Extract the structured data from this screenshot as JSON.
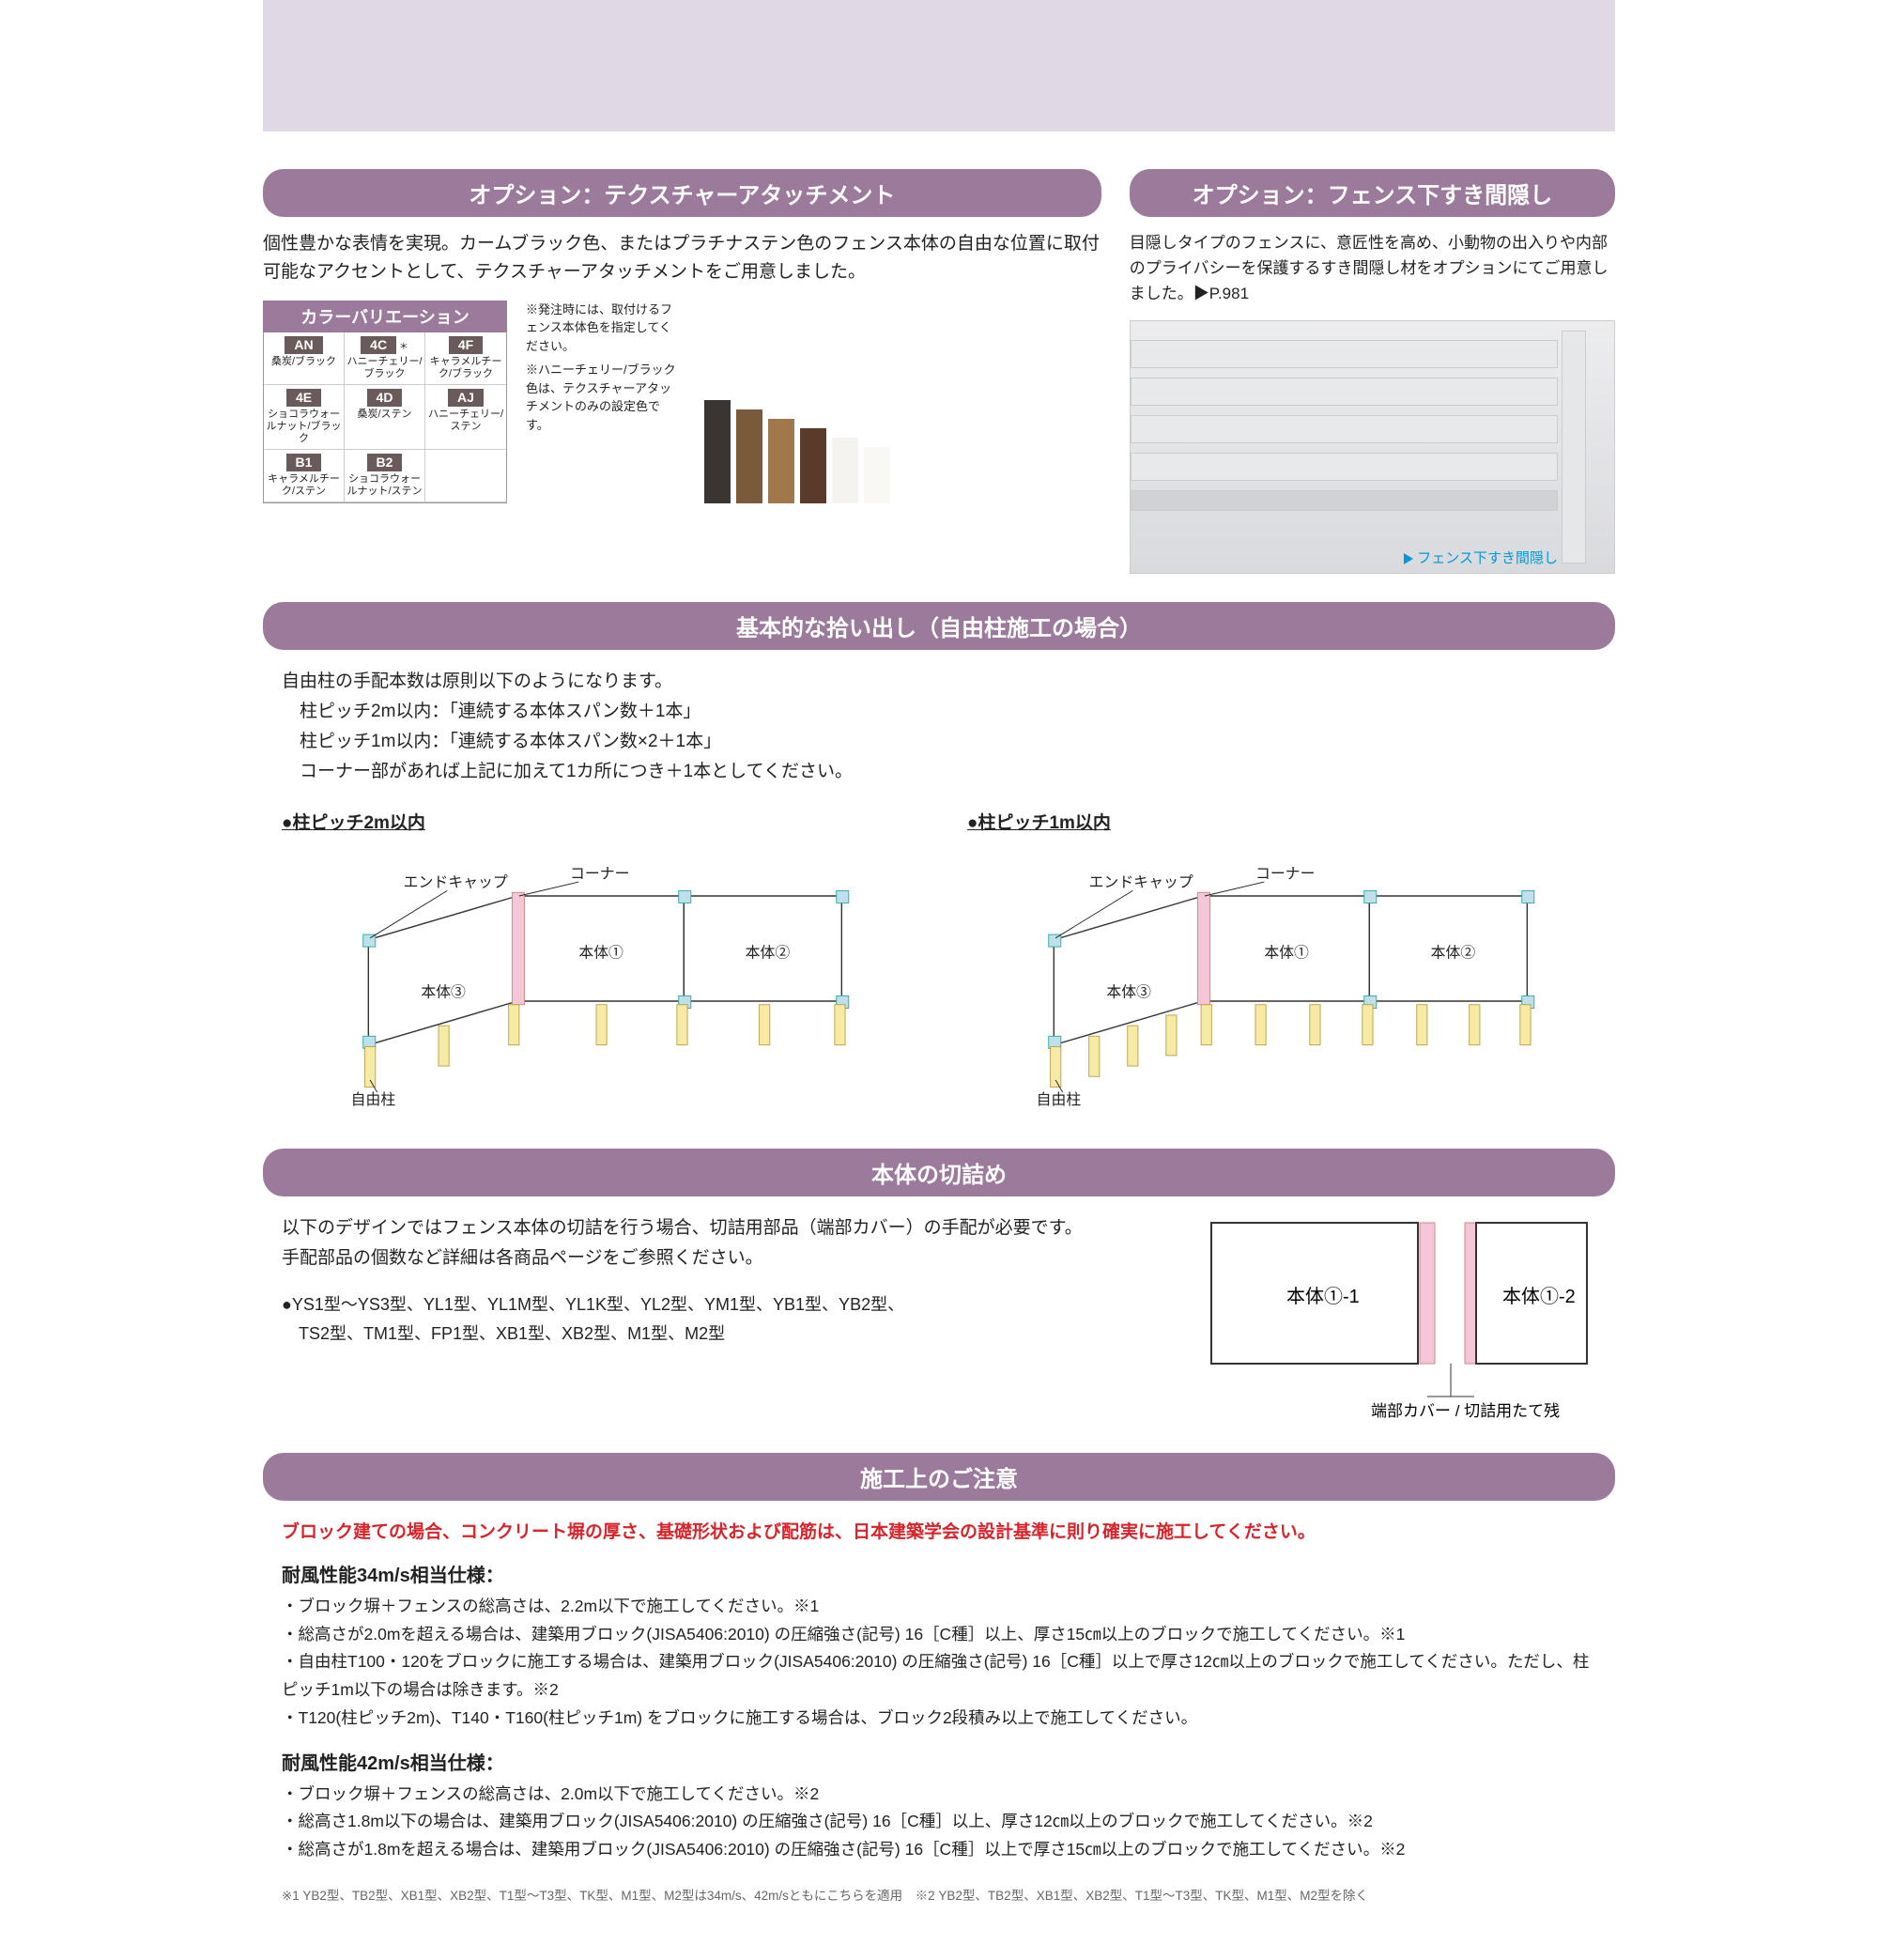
{
  "colors": {
    "purple": "#9b7a9b",
    "red": "#d8232a",
    "cyan": "#0099d8"
  },
  "option1": {
    "header": "オプション：テクスチャーアタッチメント",
    "lead": "個性豊かな表情を実現。カームブラック色、またはプラチナステン色のフェンス本体の自由な位置に取付可能なアクセントとして、テクスチャーアタッチメントをご用意しました。",
    "colorTitle": "カラーバリエーション",
    "swatches": [
      {
        "code": "AN",
        "label": "桑炭/ブラック"
      },
      {
        "code": "4C",
        "label": "ハニーチェリー/ブラック",
        "star": "＊"
      },
      {
        "code": "4F",
        "label": "キャラメルチーク/ブラック"
      },
      {
        "code": "4E",
        "label": "ショコラウォールナット/ブラック"
      },
      {
        "code": "4D",
        "label": "桑炭/ステン"
      },
      {
        "code": "AJ",
        "label": "ハニーチェリー/ステン"
      },
      {
        "code": "B1",
        "label": "キャラメルチーク/ステン"
      },
      {
        "code": "B2",
        "label": "ショコラウォールナット/ステン"
      }
    ],
    "note1": "※発注時には、取付けるフェンス本体色を指定してください。",
    "note2": "※ハニーチェリー/ブラック色は、テクスチャーアタッチメントのみの設定色です。"
  },
  "option2": {
    "header": "オプション：フェンス下すき間隠し",
    "lead": "目隠しタイプのフェンスに、意匠性を高め、小動物の出入りや内部のプライバシーを保護するすき間隠し材をオプションにてご用意しました。▶P.981",
    "arrowLabel": "フェンス下すき間隠し"
  },
  "basic": {
    "header": "基本的な拾い出し（自由柱施工の場合）",
    "intro": "自由柱の手配本数は原則以下のようになります。",
    "line1": "　柱ピッチ2m以内：「連続する本体スパン数＋1本」",
    "line2": "　柱ピッチ1m以内：「連続する本体スパン数×2＋1本」",
    "line3": "　コーナー部があれば上記に加えて1カ所につき＋1本としてください。",
    "diag1": {
      "title": "●柱ピッチ2m以内"
    },
    "diag2": {
      "title": "●柱ピッチ1m以内"
    },
    "labels": {
      "endcap": "エンドキャップ",
      "corner": "コーナー",
      "body1": "本体①",
      "body2": "本体②",
      "body3": "本体③",
      "post": "自由柱"
    }
  },
  "cut": {
    "header": "本体の切詰め",
    "lead": "以下のデザインではフェンス本体の切詰を行う場合、切詰用部品（端部カバー）の手配が必要です。\n手配部品の個数など詳細は各商品ページをご参照ください。",
    "models": "●YS1型～YS3型、YL1型、YL1M型、YL1K型、YL2型、YM1型、YB1型、YB2型、\n　TS2型、TM1型、FP1型、XB1型、XB2型、M1型、M2型",
    "figLabelA": "本体①-1",
    "figLabelB": "本体①-2",
    "caption": "端部カバー / 切詰用たて残"
  },
  "caution": {
    "header": "施工上のご注意",
    "red": "ブロック建ての場合、コンクリート塀の厚さ、基礎形状および配筋は、日本建築学会の設計基準に則り確実に施工してください。",
    "spec34": {
      "title": "耐風性能34m/s相当仕様：",
      "items": [
        "・ブロック塀＋フェンスの総高さは、2.2m以下で施工してください。※1",
        "・総高さが2.0mを超える場合は、建築用ブロック(JISA5406:2010) の圧縮強さ(記号) 16［C種］以上、厚さ15㎝以上のブロックで施工してください。※1",
        "・自由柱T100・120をブロックに施工する場合は、建築用ブロック(JISA5406:2010) の圧縮強さ(記号) 16［C種］以上で厚さ12㎝以上のブロックで施工してください。ただし、柱ピッチ1m以下の場合は除きます。※2",
        "・T120(柱ピッチ2m)、T140・T160(柱ピッチ1m) をブロックに施工する場合は、ブロック2段積み以上で施工してください。"
      ]
    },
    "spec42": {
      "title": "耐風性能42m/s相当仕様：",
      "items": [
        "・ブロック塀＋フェンスの総高さは、2.0m以下で施工してください。※2",
        "・総高さ1.8m以下の場合は、建築用ブロック(JISA5406:2010) の圧縮強さ(記号) 16［C種］以上、厚さ12㎝以上のブロックで施工してください。※2",
        "・総高さが1.8mを超える場合は、建築用ブロック(JISA5406:2010) の圧縮強さ(記号) 16［C種］以上で厚さ15㎝以上のブロックで施工してください。※2"
      ]
    },
    "footnote": "※1 YB2型、TB2型、XB1型、XB2型、T1型～T3型、TK型、M1型、M2型は34m/s、42m/sともにこちらを適用　※2 YB2型、TB2型、XB1型、XB2型、T1型～T3型、TK型、M1型、M2型を除く"
  }
}
